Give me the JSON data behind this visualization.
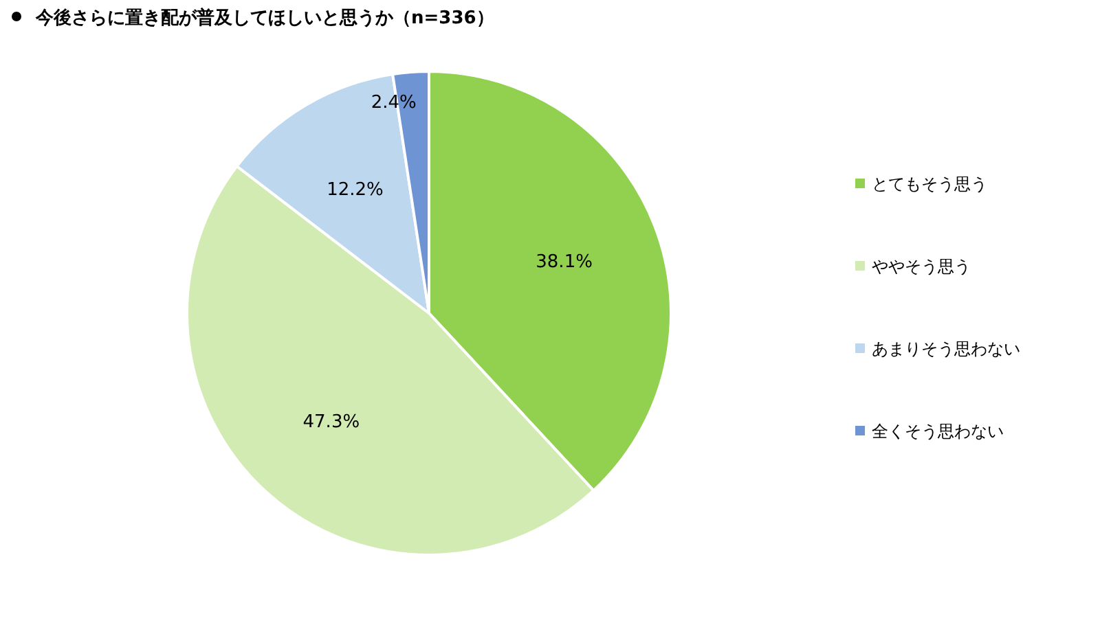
{
  "chart_data": {
    "type": "pie",
    "title": "今後さらに置き配が普及してほしいと思うか（n=336）",
    "categories": [
      "とてもそう思う",
      "ややそう思う",
      "あまりそう思わない",
      "全くそう思わない"
    ],
    "values": [
      38.1,
      47.3,
      12.2,
      2.4
    ],
    "colors": [
      "#92d050",
      "#d2ebb2",
      "#bdd7ee",
      "#6f94d4"
    ],
    "value_labels": [
      "38.1%",
      "47.3%",
      "12.2%",
      "2.4%"
    ],
    "legend": "right"
  }
}
